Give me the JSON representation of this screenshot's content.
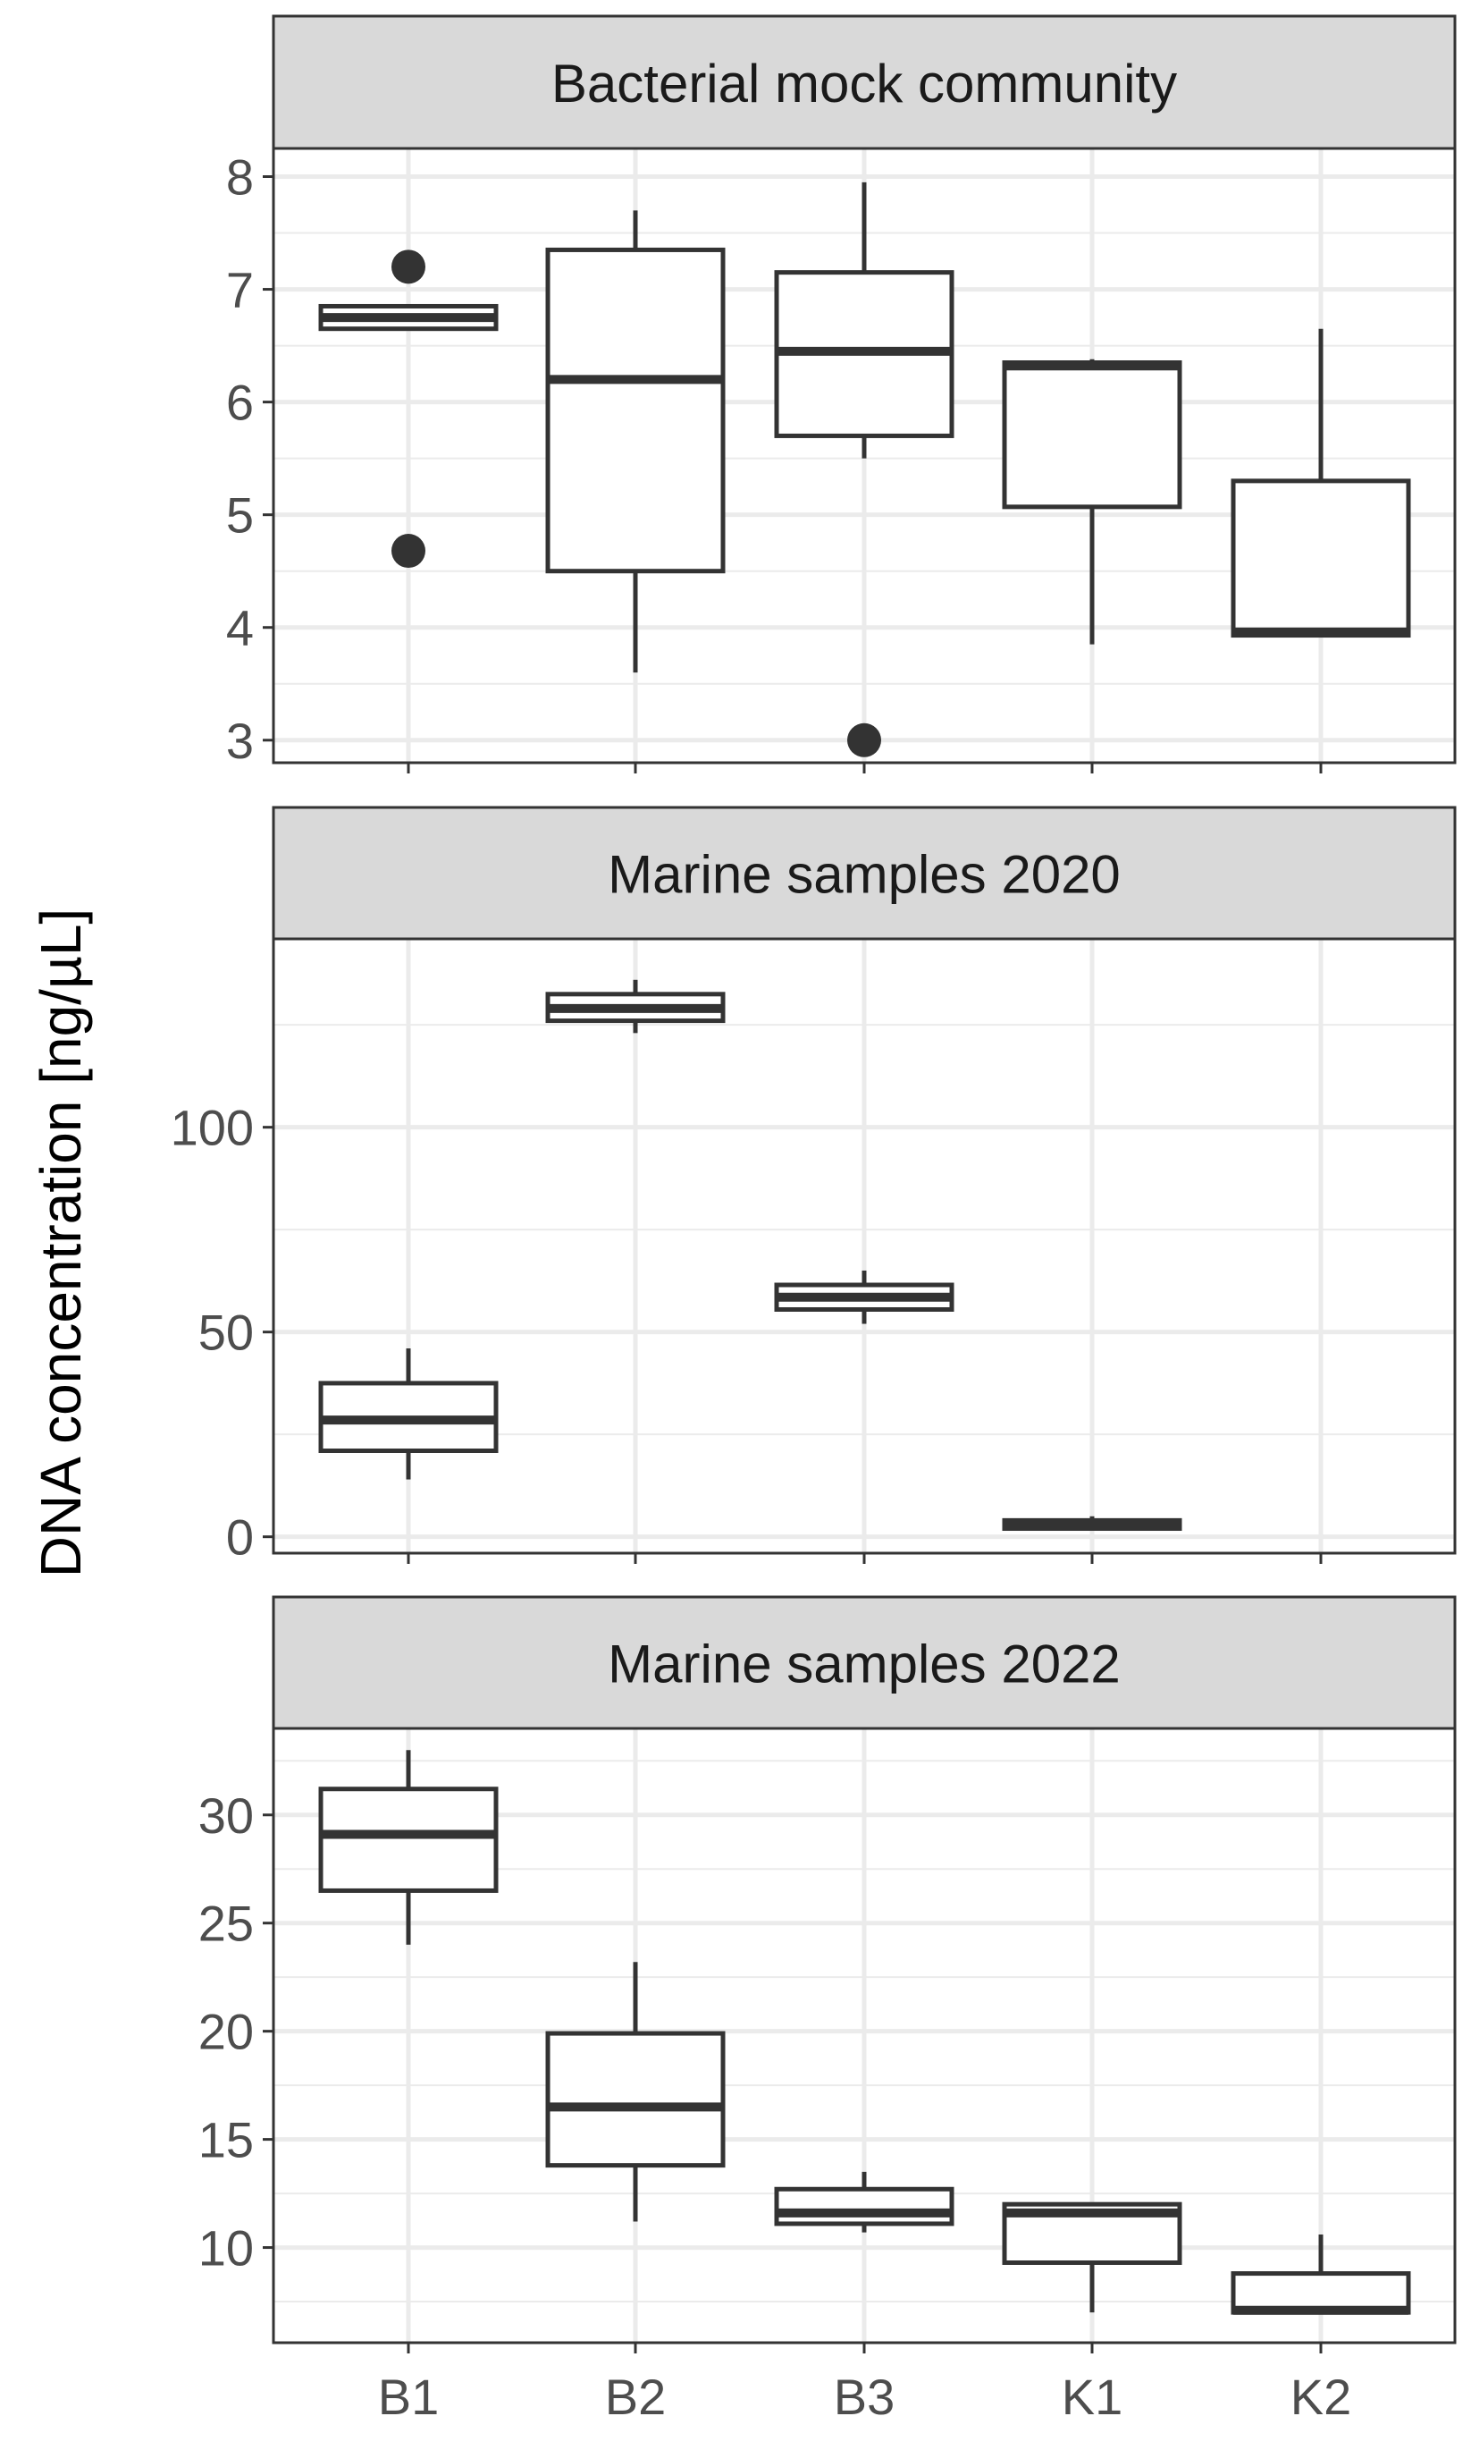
{
  "chart_data": {
    "type": "box",
    "ylabel": "DNA concentration [ng/µL]",
    "xlabel": "",
    "categories": [
      "B1",
      "B2",
      "B3",
      "K1",
      "K2"
    ],
    "colors": {
      "box": "#333333",
      "strip": "#d9d9d9",
      "grid": "#ebebeb",
      "text": "#4d4d4d"
    },
    "panels": [
      {
        "title": "Bacterial mock community",
        "ylim": [
          2.8,
          8.25
        ],
        "yticks": [
          3,
          4,
          5,
          6,
          7,
          8
        ],
        "minor_ticks": [
          3.5,
          4.5,
          5.5,
          6.5,
          7.5
        ],
        "boxes": [
          {
            "category": "B1",
            "min": 6.65,
            "q1": 6.65,
            "median": 6.75,
            "q3": 6.85,
            "max": 6.85,
            "outliers": [
              7.2,
              4.68
            ]
          },
          {
            "category": "B2",
            "min": 3.6,
            "q1": 4.5,
            "median": 6.2,
            "q3": 7.35,
            "max": 7.7,
            "outliers": []
          },
          {
            "category": "B3",
            "min": 5.5,
            "q1": 5.7,
            "median": 6.45,
            "q3": 7.15,
            "max": 7.95,
            "outliers": [
              3.0
            ]
          },
          {
            "category": "K1",
            "min": 3.85,
            "q1": 5.07,
            "median": 6.32,
            "q3": 6.35,
            "max": 6.38,
            "outliers": []
          },
          {
            "category": "K2",
            "min": 3.93,
            "q1": 3.93,
            "median": 3.96,
            "q3": 5.3,
            "max": 6.65,
            "outliers": []
          }
        ]
      },
      {
        "title": "Marine samples 2020",
        "ylim": [
          -4,
          146
        ],
        "yticks": [
          0,
          50,
          100
        ],
        "minor_ticks": [
          25,
          75,
          125
        ],
        "boxes": [
          {
            "category": "B1",
            "min": 14,
            "q1": 21,
            "median": 28.5,
            "q3": 37.5,
            "max": 46,
            "outliers": []
          },
          {
            "category": "B2",
            "min": 123,
            "q1": 126,
            "median": 129,
            "q3": 132.5,
            "max": 136,
            "outliers": []
          },
          {
            "category": "B3",
            "min": 52,
            "q1": 55.5,
            "median": 58.5,
            "q3": 61.5,
            "max": 65,
            "outliers": []
          },
          {
            "category": "K1",
            "min": 1.5,
            "q1": 2,
            "median": 3,
            "q3": 4,
            "max": 5,
            "outliers": []
          },
          {
            "category": "K2",
            "min": null,
            "q1": null,
            "median": null,
            "q3": null,
            "max": null,
            "outliers": []
          }
        ]
      },
      {
        "title": "Marine samples 2022",
        "ylim": [
          5.6,
          34.0
        ],
        "yticks": [
          10,
          15,
          20,
          25,
          30
        ],
        "minor_ticks": [
          7.5,
          12.5,
          17.5,
          22.5,
          27.5,
          32.5
        ],
        "boxes": [
          {
            "category": "B1",
            "min": 24,
            "q1": 26.5,
            "median": 29.1,
            "q3": 31.2,
            "max": 33,
            "outliers": []
          },
          {
            "category": "B2",
            "min": 11.2,
            "q1": 13.8,
            "median": 16.5,
            "q3": 19.9,
            "max": 23.2,
            "outliers": []
          },
          {
            "category": "B3",
            "min": 10.7,
            "q1": 11.1,
            "median": 11.6,
            "q3": 12.7,
            "max": 13.5,
            "outliers": []
          },
          {
            "category": "K1",
            "min": 7.0,
            "q1": 9.3,
            "median": 11.6,
            "q3": 12.0,
            "max": 12.0,
            "outliers": []
          },
          {
            "category": "K2",
            "min": 7.0,
            "q1": 7.0,
            "median": 7.1,
            "q3": 8.8,
            "max": 10.6,
            "outliers": []
          }
        ]
      }
    ]
  }
}
